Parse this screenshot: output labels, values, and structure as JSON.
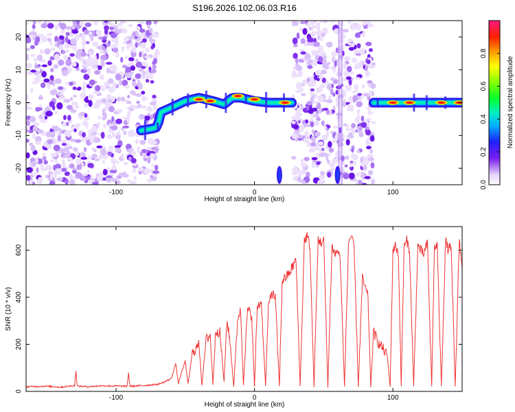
{
  "title": "S196.2026.102.06.03.R16",
  "chart_data": [
    {
      "type": "heatmap",
      "panel": "spectrogram",
      "title": "S196.2026.102.06.03.R16",
      "xlabel": "Height of straight line (km)",
      "ylabel": "Frequency (Hz)",
      "xlim": [
        -165,
        150
      ],
      "ylim": [
        -25,
        25
      ],
      "xticks": [
        -100,
        0,
        100
      ],
      "yticks": [
        -20,
        -10,
        0,
        10,
        20
      ],
      "colorbar": {
        "label": "Normalized spectral amplitude",
        "range": [
          0,
          1
        ],
        "ticks": [
          0.0,
          0.2,
          0.4,
          0.6,
          0.8
        ]
      },
      "noise_regions": [
        {
          "x_start": -165,
          "x_end": -70
        },
        {
          "x_start": 28,
          "x_end": 86
        }
      ],
      "ridge": {
        "x": [
          -82,
          -75,
          -70,
          -68,
          -60,
          -50,
          -40,
          -30,
          -22,
          -16,
          -10,
          0,
          10,
          20,
          27,
          86,
          100,
          120,
          140,
          150
        ],
        "y": [
          -8.5,
          -8,
          -7.5,
          -3,
          -1.5,
          0.5,
          1.5,
          0.5,
          -0.5,
          1.5,
          1.5,
          0.5,
          0,
          0,
          0,
          0,
          0,
          0,
          0,
          0
        ]
      },
      "ridge_segments": [
        {
          "x_start": -82,
          "x_end": 27
        },
        {
          "x_start": 86,
          "x_end": 150
        }
      ],
      "hotspots": [
        {
          "x": -40,
          "y": 1
        },
        {
          "x": -32,
          "y": 0.5
        },
        {
          "x": -12,
          "y": 2
        },
        {
          "x": 0,
          "y": 1
        },
        {
          "x": 22,
          "y": 0
        },
        {
          "x": 100,
          "y": 0
        },
        {
          "x": 112,
          "y": 0
        },
        {
          "x": 135,
          "y": 0
        },
        {
          "x": 148,
          "y": 0
        }
      ],
      "bursts": [
        {
          "x": 18,
          "y": -22
        },
        {
          "x": 60,
          "y": -22
        }
      ],
      "stripes": [
        {
          "x": 61
        },
        {
          "x": 63
        }
      ]
    },
    {
      "type": "line",
      "panel": "snr",
      "xlabel": "Height of straight line (km)",
      "ylabel": "SNR (10 * v/v)",
      "xlim": [
        -165,
        150
      ],
      "ylim": [
        0,
        700
      ],
      "xticks": [
        -100,
        0,
        100
      ],
      "yticks": [
        0,
        200,
        400,
        600
      ],
      "color": "#ee3333",
      "series": [
        {
          "name": "SNR",
          "x": [
            -165,
            -150,
            -140,
            -130,
            -129,
            -128,
            -120,
            -110,
            -92,
            -91,
            -90,
            -80,
            -70,
            -65,
            -60,
            -57,
            -55,
            -50,
            -48,
            -45,
            -40,
            -38,
            -35,
            -32,
            -30,
            -28,
            -25,
            -22,
            -20,
            -18,
            -15,
            -12,
            -10,
            -8,
            -5,
            -2,
            0,
            2,
            5,
            8,
            10,
            12,
            15,
            18,
            20,
            25,
            30,
            33,
            36,
            38,
            40,
            43,
            46,
            48,
            50,
            53,
            56,
            58,
            60,
            62,
            65,
            68,
            70,
            72,
            75,
            78,
            80,
            82,
            84,
            86,
            88,
            90,
            92,
            94,
            96,
            98,
            100,
            102,
            104,
            106,
            108,
            110,
            112,
            115,
            118,
            120,
            122,
            125,
            128,
            130,
            132,
            135,
            138,
            140,
            142,
            145,
            148,
            150
          ],
          "y": [
            20,
            22,
            18,
            25,
            85,
            22,
            20,
            24,
            22,
            80,
            22,
            25,
            30,
            40,
            55,
            120,
            35,
            130,
            30,
            160,
            200,
            25,
            220,
            240,
            30,
            260,
            250,
            40,
            300,
            230,
            20,
            320,
            340,
            30,
            350,
            320,
            20,
            360,
            380,
            20,
            350,
            420,
            400,
            20,
            470,
            500,
            560,
            20,
            640,
            660,
            620,
            20,
            650,
            630,
            640,
            20,
            620,
            580,
            600,
            560,
            20,
            640,
            660,
            600,
            20,
            480,
            440,
            400,
            20,
            250,
            230,
            200,
            190,
            170,
            150,
            20,
            600,
            620,
            580,
            20,
            610,
            640,
            600,
            20,
            620,
            600,
            580,
            630,
            20,
            610,
            620,
            20,
            640,
            600,
            620,
            20,
            650,
            520
          ]
        }
      ]
    }
  ]
}
